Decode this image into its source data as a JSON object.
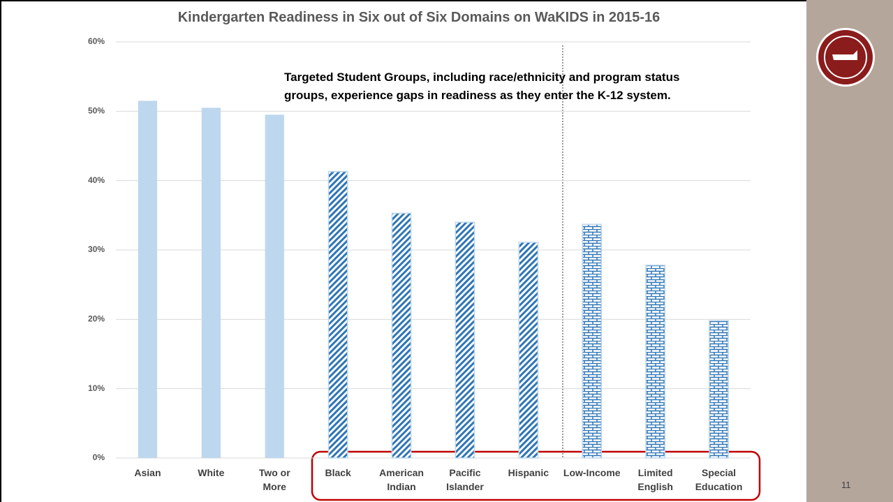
{
  "chart_data": {
    "type": "bar",
    "title": "Kindergarten Readiness in Six out of Six Domains on WaKIDS in 2015-16",
    "annotation": "Targeted Student Groups, including race/ethnicity and program status\ngroups, experience gaps in readiness as they enter the K-12 system.",
    "categories": [
      "Asian",
      "White",
      "Two or\nMore",
      "Black",
      "American\nIndian",
      "Pacific\nIslander",
      "Hispanic",
      "Low-Income",
      "Limited\nEnglish",
      "Special\nEducation"
    ],
    "values": [
      51.5,
      50.5,
      49.5,
      41.3,
      35.3,
      34.0,
      31.1,
      33.7,
      27.8,
      19.8
    ],
    "patterns": [
      "solid",
      "solid",
      "solid",
      "hatch",
      "hatch",
      "hatch",
      "hatch",
      "brick",
      "brick",
      "brick"
    ],
    "color": "#bdd7ee",
    "pattern_color": "#2e75b6",
    "ylim": [
      0,
      60
    ],
    "yticks": [
      {
        "value": 0,
        "label": "0%"
      },
      {
        "value": 10,
        "label": "10%"
      },
      {
        "value": 20,
        "label": "20%"
      },
      {
        "value": 30,
        "label": "30%"
      },
      {
        "value": 40,
        "label": "40%"
      },
      {
        "value": 50,
        "label": "50%"
      },
      {
        "value": 60,
        "label": "60%"
      }
    ],
    "grid": true
  },
  "page_number": "11"
}
